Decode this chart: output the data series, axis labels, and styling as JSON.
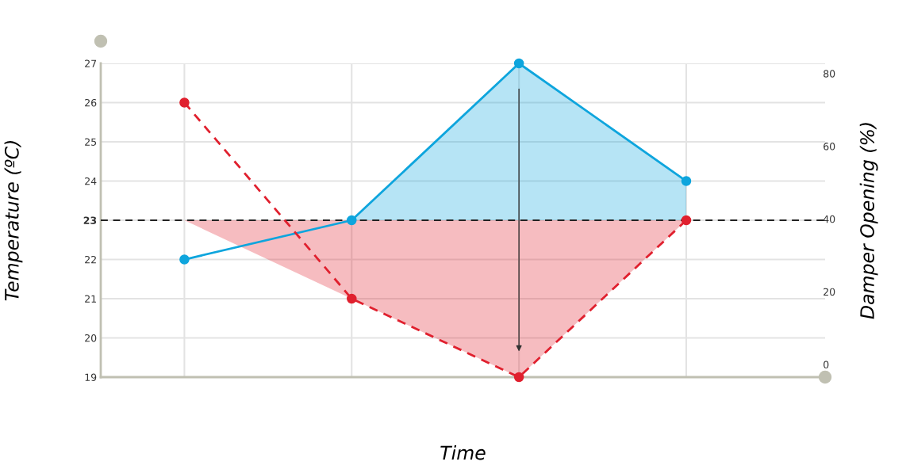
{
  "chart_data": {
    "type": "line",
    "xlabel": "Time",
    "ylabel": "Temperature (ºC)",
    "y2label": "Damper Opening (%)",
    "categories": [
      null,
      null,
      null,
      null
    ],
    "ylim": [
      19,
      27
    ],
    "yticks": [
      19,
      20,
      21,
      22,
      23,
      24,
      25,
      26,
      27
    ],
    "y2lim": [
      -3.5,
      82.8
    ],
    "y2ticks": [
      0,
      20,
      40,
      60,
      80
    ],
    "tick_labels": "y",
    "series": [
      {
        "color": "#0ea5dd",
        "values": [
          22,
          23,
          27,
          24
        ],
        "line_style": "solid"
      },
      {
        "color": "#e0202e",
        "values": [
          26,
          21,
          19,
          23
        ],
        "line_style": "dashed"
      }
    ],
    "ref_lines": [
      {
        "axis": "y",
        "value": 23,
        "label": null,
        "color": "#222222",
        "line_style": "dashed"
      }
    ],
    "grid": true,
    "marker": "circle"
  }
}
